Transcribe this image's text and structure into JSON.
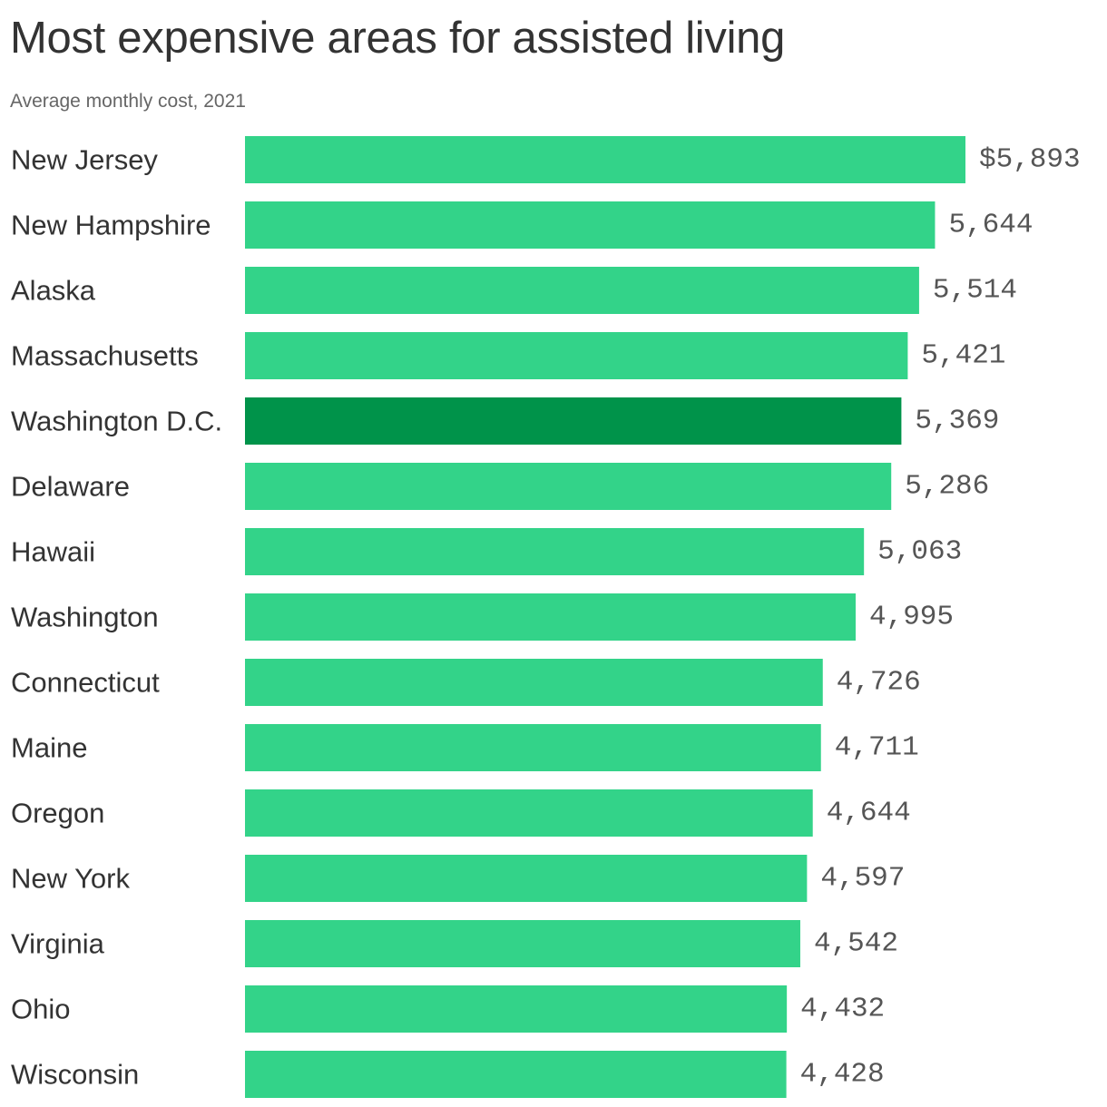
{
  "title": "Most expensive areas for assisted living",
  "subtitle": "Average monthly cost, 2021",
  "colors": {
    "bar": "#33d389",
    "highlight": "#00934a",
    "label": "#333333",
    "value": "#555555"
  },
  "chart_data": {
    "type": "bar",
    "orientation": "horizontal",
    "title": "Most expensive areas for assisted living",
    "subtitle": "Average monthly cost, 2021",
    "categories": [
      "New Jersey",
      "New Hampshire",
      "Alaska",
      "Massachusetts",
      "Washington D.C.",
      "Delaware",
      "Hawaii",
      "Washington",
      "Connecticut",
      "Maine",
      "Oregon",
      "New York",
      "Virginia",
      "Ohio",
      "Wisconsin"
    ],
    "values": [
      5893,
      5644,
      5514,
      5421,
      5369,
      5286,
      5063,
      4995,
      4726,
      4711,
      4644,
      4597,
      4542,
      4432,
      4428
    ],
    "value_labels": [
      "$5,893",
      "5,644",
      "5,514",
      "5,421",
      "5,369",
      "5,286",
      "5,063",
      "4,995",
      "4,726",
      "4,711",
      "4,644",
      "4,597",
      "4,542",
      "4,432",
      "4,428"
    ],
    "highlight": "Washington D.C.",
    "xlim": [
      0,
      5893
    ],
    "grid": false,
    "legend": "none"
  }
}
